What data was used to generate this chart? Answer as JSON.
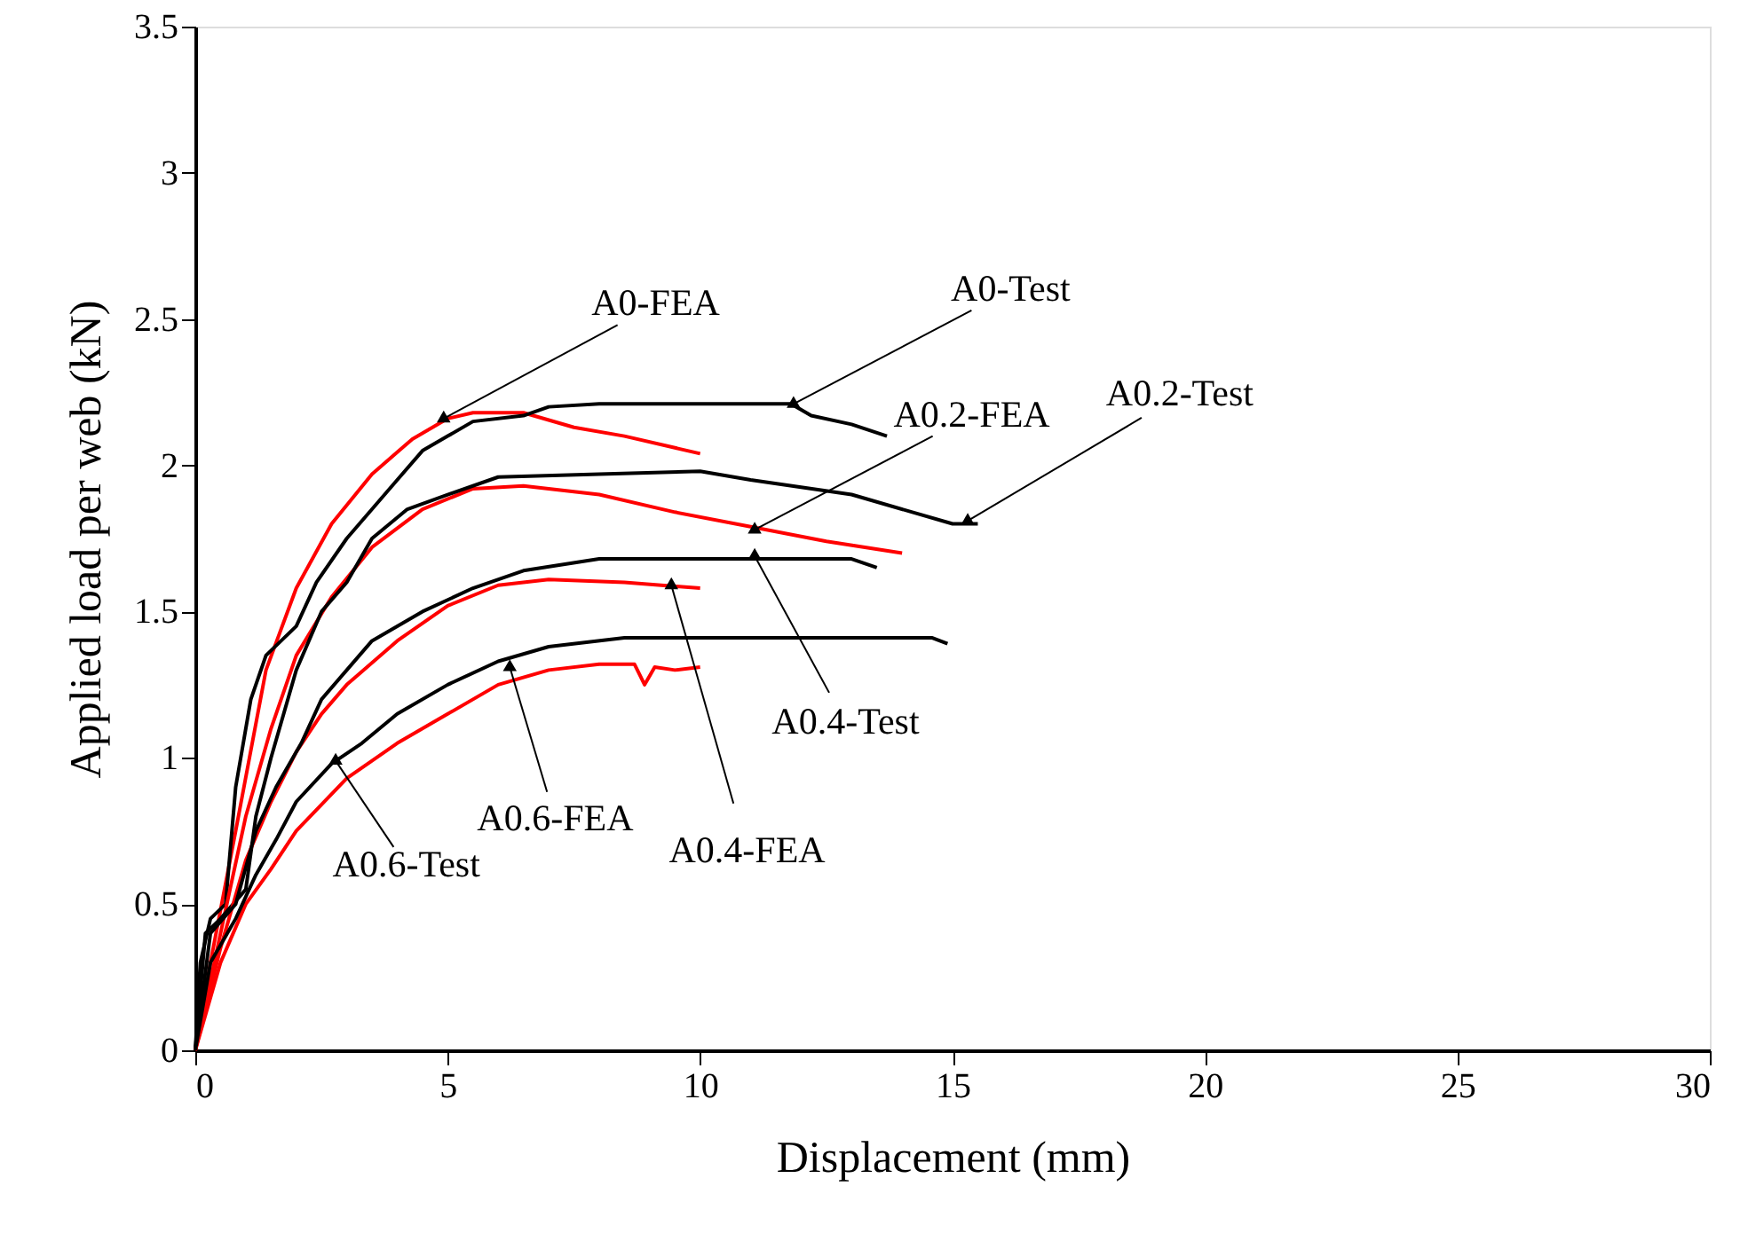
{
  "chart_data": {
    "type": "line",
    "xlabel": "Displacement (mm)",
    "ylabel": "Applied load per web (kN)",
    "xlim": [
      0,
      30
    ],
    "xticks": [
      0,
      5,
      10,
      15,
      20,
      25,
      30
    ],
    "ylim": [
      0,
      3.5
    ],
    "yticks": [
      0,
      0.5,
      1,
      1.5,
      2,
      2.5,
      3,
      3.5
    ],
    "grid": false,
    "marker": "none",
    "line_style": "solid",
    "series": [
      {
        "color": "#ff0000",
        "x": [
          0,
          0.3,
          0.8,
          1.4,
          2,
          2.7,
          3.5,
          4.3,
          5,
          5.5,
          6.5,
          7.5,
          8.5,
          9.5,
          10
        ],
        "values": [
          0,
          0.3,
          0.75,
          1.3,
          1.58,
          1.8,
          1.97,
          2.09,
          2.16,
          2.18,
          2.18,
          2.13,
          2.1,
          2.06,
          2.04
        ]
      },
      {
        "color": "#000000",
        "x": [
          0,
          0.1,
          0.3,
          0.6,
          0.8,
          1.1,
          1.4,
          2,
          2.4,
          3,
          3.5,
          4,
          4.5,
          5,
          5.5,
          6.5,
          7,
          8,
          11.8,
          12.2,
          13,
          13.7
        ],
        "values": [
          0,
          0.3,
          0.45,
          0.5,
          0.9,
          1.2,
          1.35,
          1.45,
          1.6,
          1.75,
          1.85,
          1.95,
          2.05,
          2.1,
          2.15,
          2.17,
          2.2,
          2.21,
          2.21,
          2.17,
          2.14,
          2.1
        ]
      },
      {
        "color": "#ff0000",
        "x": [
          0,
          0.5,
          1,
          1.5,
          2,
          2.7,
          3.5,
          4.5,
          5.5,
          6.5,
          8,
          9.5,
          11,
          12.5,
          14
        ],
        "values": [
          0,
          0.4,
          0.8,
          1.1,
          1.35,
          1.55,
          1.72,
          1.85,
          1.92,
          1.93,
          1.9,
          1.84,
          1.79,
          1.74,
          1.7
        ]
      },
      {
        "color": "#000000",
        "x": [
          0,
          0.2,
          0.5,
          1,
          1.2,
          1.5,
          2,
          2.5,
          3,
          3.5,
          4.2,
          5,
          6,
          8,
          10,
          11,
          13,
          15,
          15.5
        ],
        "values": [
          0,
          0.4,
          0.45,
          0.55,
          0.8,
          1.0,
          1.3,
          1.5,
          1.6,
          1.75,
          1.85,
          1.9,
          1.96,
          1.97,
          1.98,
          1.95,
          1.9,
          1.8,
          1.8
        ]
      },
      {
        "color": "#ff0000",
        "x": [
          0,
          0.5,
          1,
          1.5,
          2,
          2.5,
          3,
          4,
          5,
          6,
          7,
          8.5,
          10
        ],
        "values": [
          0,
          0.35,
          0.65,
          0.85,
          1.02,
          1.15,
          1.25,
          1.4,
          1.52,
          1.59,
          1.61,
          1.6,
          1.58
        ]
      },
      {
        "color": "#000000",
        "x": [
          0,
          0.3,
          0.8,
          1.2,
          1.6,
          2.1,
          2.5,
          3,
          3.5,
          4.5,
          5.5,
          6.5,
          8,
          10,
          12,
          13,
          13.5
        ],
        "values": [
          0,
          0.4,
          0.5,
          0.75,
          0.9,
          1.05,
          1.2,
          1.3,
          1.4,
          1.5,
          1.58,
          1.64,
          1.68,
          1.68,
          1.68,
          1.68,
          1.65
        ]
      },
      {
        "color": "#ff0000",
        "x": [
          0,
          0.5,
          1,
          1.5,
          2,
          3,
          4,
          5,
          6,
          7,
          8,
          8.7,
          8.9,
          9.1,
          9.5,
          10
        ],
        "values": [
          0,
          0.3,
          0.5,
          0.62,
          0.75,
          0.93,
          1.05,
          1.15,
          1.25,
          1.3,
          1.32,
          1.32,
          1.25,
          1.31,
          1.3,
          1.31
        ]
      },
      {
        "color": "#000000",
        "x": [
          0,
          0.3,
          0.8,
          1.2,
          1.6,
          2,
          2.7,
          3.3,
          4,
          5,
          6,
          7,
          8.5,
          10,
          14.6,
          14.9
        ],
        "values": [
          0,
          0.3,
          0.45,
          0.6,
          0.72,
          0.85,
          0.98,
          1.05,
          1.15,
          1.25,
          1.33,
          1.38,
          1.41,
          1.41,
          1.41,
          1.39
        ]
      }
    ],
    "annotations": [
      {
        "text": "A0-FEA",
        "x": 4.92,
        "y": 2.16
      },
      {
        "text": "A0-Test",
        "x": 11.85,
        "y": 2.21
      },
      {
        "text": "A0.2-FEA",
        "x": 11.08,
        "y": 1.78
      },
      {
        "text": "A0.2-Test",
        "x": 15.3,
        "y": 1.81
      },
      {
        "text": "A0.4-Test",
        "x": 11.08,
        "y": 1.69
      },
      {
        "text": "A0.6-FEA",
        "x": 6.23,
        "y": 1.31
      },
      {
        "text": "A0.4-FEA",
        "x": 9.43,
        "y": 1.59
      },
      {
        "text": "A0.6-Test",
        "x": 2.78,
        "y": 0.99
      }
    ]
  }
}
